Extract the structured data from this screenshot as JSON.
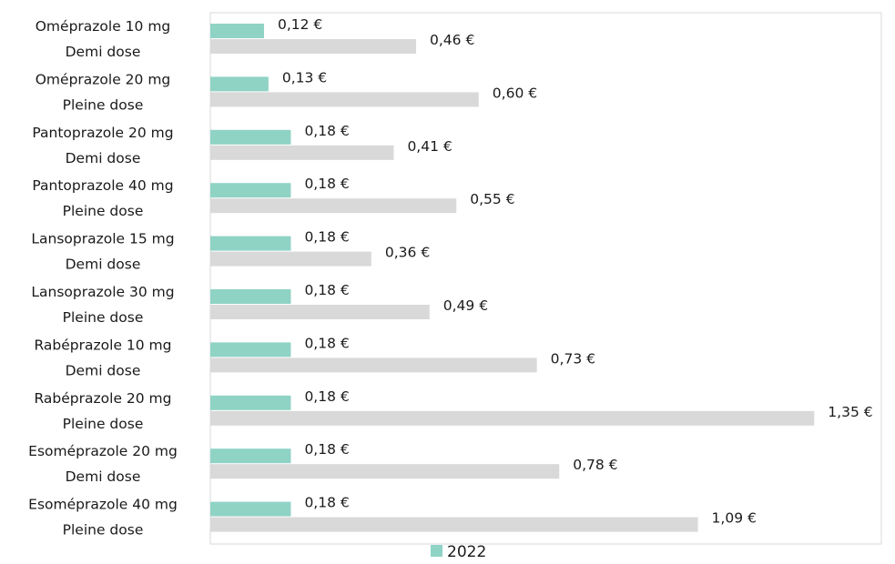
{
  "chart_data": {
    "type": "bar",
    "orientation": "horizontal",
    "categories": [
      [
        "Oméprazole 10 mg",
        "Demi dose"
      ],
      [
        "Oméprazole 20 mg",
        "Pleine dose"
      ],
      [
        "Pantoprazole 20 mg",
        "Demi dose"
      ],
      [
        "Pantoprazole 40 mg",
        "Pleine dose"
      ],
      [
        "Lansoprazole 15 mg",
        "Demi dose"
      ],
      [
        "Lansoprazole 30 mg",
        "Pleine dose"
      ],
      [
        "Rabéprazole 10 mg",
        "Demi dose"
      ],
      [
        "Rabéprazole 20 mg",
        "Pleine dose"
      ],
      [
        "Esoméprazole 20 mg",
        "Demi dose"
      ],
      [
        "Esoméprazole 40 mg",
        "Pleine dose"
      ]
    ],
    "series": [
      {
        "name": "2022",
        "color": "#8fd3c5",
        "values": [
          0.12,
          0.13,
          0.18,
          0.18,
          0.18,
          0.18,
          0.18,
          0.18,
          0.18,
          0.18
        ],
        "labels": [
          "0,12 €",
          "0,13 €",
          "0,18 €",
          "0,18 €",
          "0,18 €",
          "0,18 €",
          "0,18 €",
          "0,18 €",
          "0,18 €",
          "0,18 €"
        ]
      },
      {
        "color": "#d9d9d9",
        "values": [
          0.46,
          0.6,
          0.41,
          0.55,
          0.36,
          0.49,
          0.73,
          1.35,
          0.78,
          1.09
        ],
        "labels": [
          "0,46 €",
          "0,60 €",
          "0,41 €",
          "0,55 €",
          "0,36 €",
          "0,49 €",
          "0,73 €",
          "1,35 €",
          "0,78 €",
          "1,09 €"
        ]
      }
    ],
    "xlim": [
      0,
      1.5
    ],
    "grid": false,
    "legend": {
      "position": "bottom",
      "entries": [
        "2022"
      ]
    },
    "plot_border_color": "#d9d9d9"
  }
}
